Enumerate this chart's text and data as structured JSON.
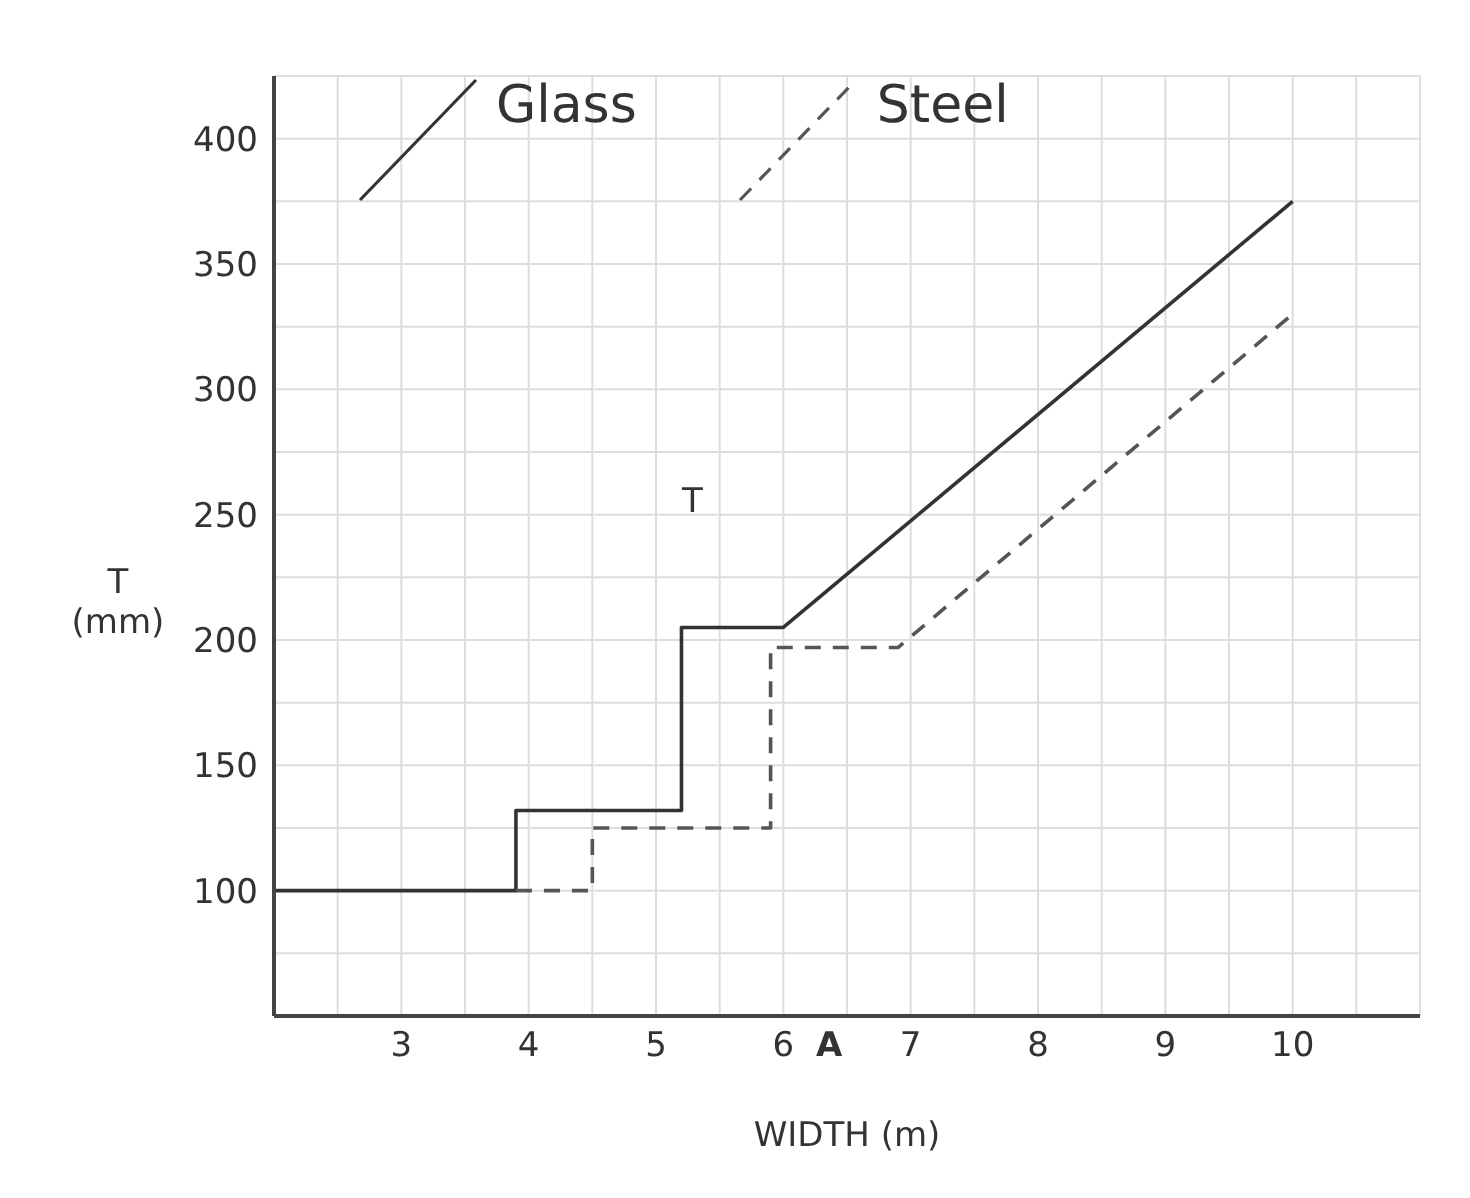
{
  "chart_data": {
    "type": "line",
    "xlabel": "WIDTH (m)",
    "ylabel": "T\n(mm)",
    "annotations": [
      "A",
      "T"
    ],
    "xlim": [
      2,
      11
    ],
    "ylim": [
      50,
      425
    ],
    "xticks": [
      {
        "value": 2.5,
        "label": null
      },
      3,
      {
        "value": 3.5,
        "label": null
      },
      4,
      {
        "value": 4.5,
        "label": null
      },
      5,
      {
        "value": 5.5,
        "label": null
      },
      6,
      {
        "value": 6.5,
        "label": null
      },
      7,
      {
        "value": 7.5,
        "label": null
      },
      8,
      {
        "value": 8.5,
        "label": null
      },
      9,
      {
        "value": 9.5,
        "label": null
      },
      10,
      {
        "value": 10.5,
        "label": null
      }
    ],
    "yticks": [
      {
        "value": 75,
        "label": null
      },
      100,
      {
        "value": 125,
        "label": null
      },
      150,
      {
        "value": 175,
        "label": null
      },
      200,
      {
        "value": 225,
        "label": null
      },
      250,
      {
        "value": 275,
        "label": null
      },
      300,
      {
        "value": 325,
        "label": null
      },
      350,
      {
        "value": 375,
        "label": null
      },
      400
    ],
    "grid": true,
    "legend": "top",
    "marker": "none",
    "series": [
      {
        "name": "Glass",
        "color": "#333333",
        "line_style": "solid",
        "x": [
          2,
          3.9,
          3.9,
          5.2,
          5.2,
          6,
          10
        ],
        "values": [
          100,
          100,
          132,
          132,
          205,
          205,
          375
        ]
      },
      {
        "name": "Steel",
        "color": "#555555",
        "line_style": "dashed",
        "x": [
          3.9,
          4.5,
          4.5,
          5.9,
          5.9,
          6.9,
          10
        ],
        "values": [
          100,
          100,
          125,
          125,
          197,
          197,
          330
        ]
      }
    ]
  }
}
